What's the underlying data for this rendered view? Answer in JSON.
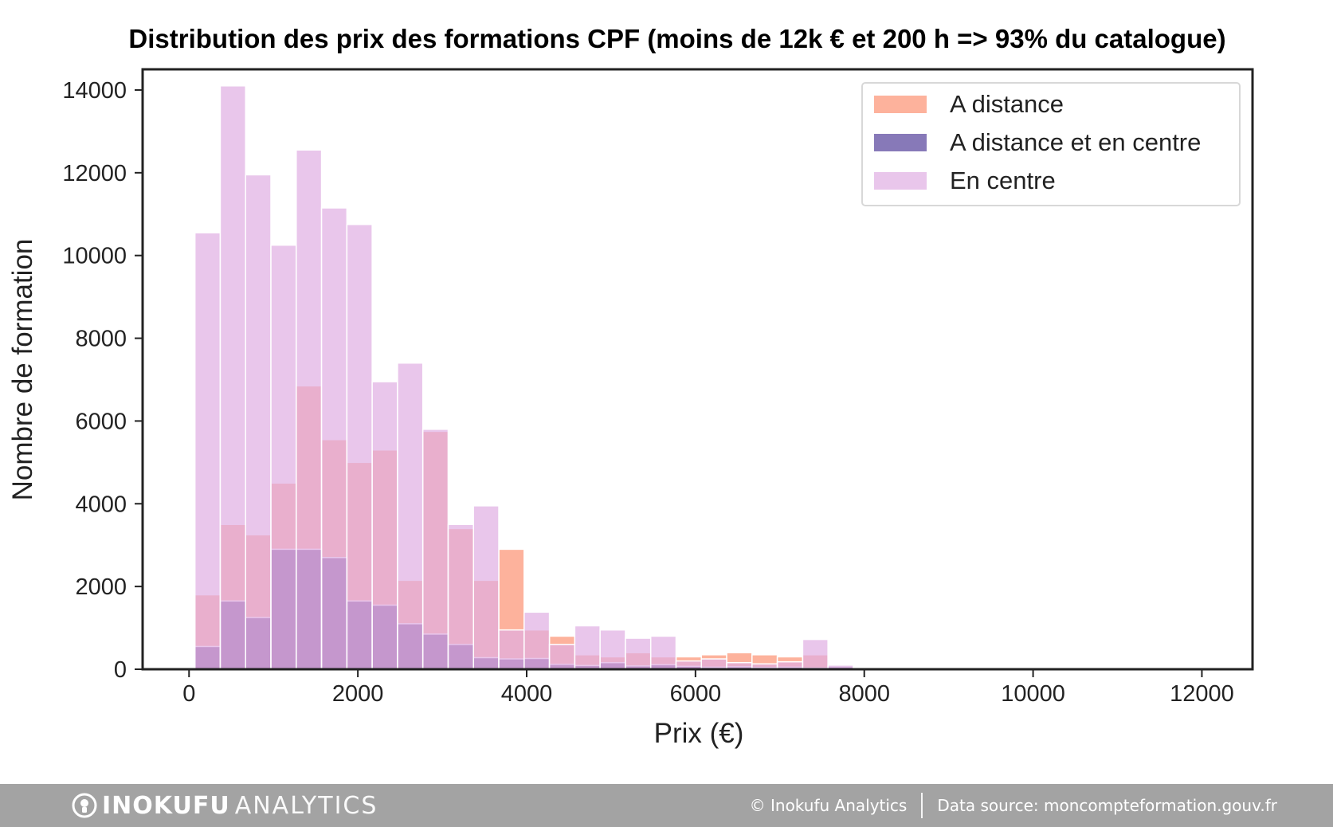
{
  "chart_data": {
    "type": "bar",
    "title": "Distribution des prix des formations CPF (moins de 12k € et 200 h => 93% du catalogue)",
    "xlabel": "Prix (€)",
    "ylabel": "Nombre de formation",
    "xlim": [
      -550,
      12600
    ],
    "ylim": [
      0,
      14500
    ],
    "xticks": [
      0,
      2000,
      4000,
      6000,
      8000,
      10000,
      12000
    ],
    "yticks": [
      0,
      2000,
      4000,
      6000,
      8000,
      10000,
      12000,
      14000
    ],
    "bin_width": 300,
    "legend_position": "top-right",
    "series": [
      {
        "name": "A distance",
        "color": "#fc9272",
        "bins": [
          [
            70,
            1800
          ],
          [
            370,
            3500
          ],
          [
            670,
            3250
          ],
          [
            970,
            4500
          ],
          [
            1270,
            6850
          ],
          [
            1570,
            5550
          ],
          [
            1870,
            5000
          ],
          [
            2170,
            5300
          ],
          [
            2470,
            2150
          ],
          [
            2770,
            5750
          ],
          [
            3070,
            3400
          ],
          [
            3370,
            2150
          ],
          [
            3670,
            2900
          ],
          [
            3970,
            950
          ],
          [
            4270,
            800
          ],
          [
            4570,
            350
          ],
          [
            4870,
            300
          ],
          [
            5170,
            400
          ],
          [
            5470,
            300
          ],
          [
            5770,
            300
          ],
          [
            6070,
            350
          ],
          [
            6370,
            400
          ],
          [
            6670,
            350
          ],
          [
            6970,
            300
          ],
          [
            7270,
            350
          ],
          [
            7570,
            50
          ]
        ]
      },
      {
        "name": "A distance et en centre",
        "color": "#54409a",
        "bins": [
          [
            70,
            550
          ],
          [
            370,
            1650
          ],
          [
            670,
            1250
          ],
          [
            970,
            2900
          ],
          [
            1270,
            2900
          ],
          [
            1570,
            2700
          ],
          [
            1870,
            1650
          ],
          [
            2170,
            1550
          ],
          [
            2470,
            1100
          ],
          [
            2770,
            850
          ],
          [
            3070,
            600
          ],
          [
            3370,
            280
          ],
          [
            3670,
            250
          ],
          [
            3970,
            260
          ],
          [
            4270,
            120
          ],
          [
            4570,
            90
          ],
          [
            4870,
            160
          ],
          [
            5170,
            80
          ],
          [
            5470,
            110
          ],
          [
            5770,
            70
          ],
          [
            6070,
            50
          ],
          [
            6370,
            60
          ],
          [
            6670,
            40
          ],
          [
            6970,
            50
          ],
          [
            7270,
            30
          ],
          [
            7570,
            60
          ]
        ]
      },
      {
        "name": "En centre",
        "color": "#dfaee2",
        "bins": [
          [
            70,
            10550
          ],
          [
            370,
            14100
          ],
          [
            670,
            11950
          ],
          [
            970,
            10250
          ],
          [
            1270,
            12550
          ],
          [
            1570,
            11150
          ],
          [
            1870,
            10750
          ],
          [
            2170,
            6950
          ],
          [
            2470,
            7400
          ],
          [
            2770,
            5800
          ],
          [
            3070,
            3500
          ],
          [
            3370,
            3950
          ],
          [
            3670,
            950
          ],
          [
            3970,
            1380
          ],
          [
            4270,
            600
          ],
          [
            4570,
            1050
          ],
          [
            4870,
            950
          ],
          [
            5170,
            750
          ],
          [
            5470,
            800
          ],
          [
            5770,
            200
          ],
          [
            6070,
            250
          ],
          [
            6370,
            160
          ],
          [
            6670,
            130
          ],
          [
            6970,
            180
          ],
          [
            7270,
            720
          ],
          [
            7570,
            100
          ],
          [
            7870,
            40
          ]
        ]
      }
    ]
  },
  "footer": {
    "brand_name": "INOKUFU",
    "brand_sub": "ANALYTICS",
    "copyright": "© Inokufu Analytics",
    "source": "Data source: moncompteformation.gouv.fr"
  },
  "icons": {
    "brand_logo": "lightbulb-icon"
  }
}
